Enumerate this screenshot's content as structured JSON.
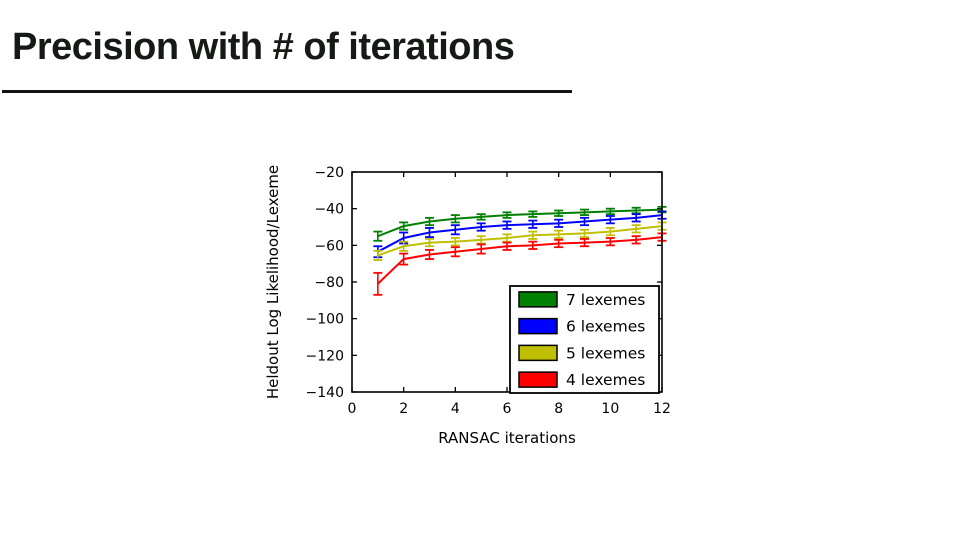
{
  "slide": {
    "title": "Precision with # of iterations"
  },
  "chart_data": {
    "type": "line",
    "title": "",
    "xlabel": "RANSAC iterations",
    "ylabel": "Heldout Log Likelihood/Lexeme",
    "xlim": [
      0,
      12
    ],
    "ylim": [
      -140,
      -20
    ],
    "grid": false,
    "legend_position": "lower right",
    "x_ticks": [
      0,
      2,
      4,
      6,
      8,
      10,
      12
    ],
    "x_tick_labels": [
      "0",
      "2",
      "4",
      "6",
      "8",
      "10",
      "12"
    ],
    "y_ticks": [
      -20,
      -40,
      -60,
      -80,
      -100,
      -120,
      -140
    ],
    "y_tick_labels": [
      "−20",
      "−40",
      "−60",
      "−80",
      "−100",
      "−120",
      "−140"
    ],
    "x": [
      1,
      2,
      3,
      4,
      5,
      6,
      7,
      8,
      9,
      10,
      11,
      12
    ],
    "series": [
      {
        "name": "7 lexemes",
        "color": "#008000",
        "values": [
          -55,
          -49.5,
          -47,
          -45.5,
          -44.5,
          -43.5,
          -43,
          -42.5,
          -42,
          -41.5,
          -41,
          -40.5
        ],
        "errors": [
          2.5,
          2,
          2,
          2,
          1.5,
          1.5,
          1.5,
          1.5,
          1.5,
          1.5,
          1.5,
          1.5
        ]
      },
      {
        "name": "6 lexemes",
        "color": "#0000ff",
        "values": [
          -63.5,
          -56,
          -53,
          -51.5,
          -50,
          -49,
          -48.5,
          -48,
          -47,
          -46,
          -45,
          -43.5
        ],
        "errors": [
          3,
          3,
          2.5,
          2.5,
          2,
          2,
          2,
          2,
          2,
          2,
          2,
          2
        ]
      },
      {
        "name": "5 lexemes",
        "color": "#bfbf00",
        "values": [
          -65.5,
          -60.5,
          -58.5,
          -58,
          -57,
          -56,
          -54.5,
          -54,
          -53.5,
          -52.5,
          -51,
          -49.5
        ],
        "errors": [
          2.5,
          2.5,
          2,
          2,
          2,
          2,
          2,
          2,
          2,
          2,
          2,
          2
        ]
      },
      {
        "name": "4 lexemes",
        "color": "#ff0000",
        "values": [
          -81,
          -67.5,
          -65,
          -63.5,
          -62,
          -60.5,
          -60,
          -59,
          -58.5,
          -58,
          -57,
          -55.5
        ],
        "errors": [
          6,
          3,
          2.5,
          2.5,
          2.5,
          2,
          2,
          2,
          2,
          2,
          2,
          2
        ]
      }
    ]
  }
}
